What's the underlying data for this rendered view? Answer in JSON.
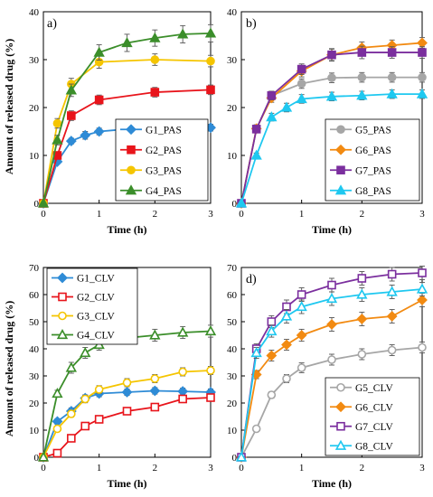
{
  "figure": {
    "ylabel": "Amount of released drug (%)"
  },
  "chart_data": [
    {
      "type": "line",
      "panel": "a)",
      "xlabel": "Time (h)",
      "ylabel": "Amount of released drug (%)",
      "xlim": [
        0,
        3
      ],
      "ylim": [
        0,
        40
      ],
      "xticks": [
        0,
        1,
        2,
        3
      ],
      "yticks": [
        0,
        10,
        20,
        30,
        40
      ],
      "legend_position": "bottom-right",
      "x": [
        0,
        0.25,
        0.5,
        0.75,
        1,
        1.5,
        2,
        2.5,
        3
      ],
      "series": [
        {
          "name": "G1_PAS",
          "color": "#2E8BD6",
          "marker": "diamond",
          "fill": "filled",
          "values": [
            0,
            8.7,
            13.0,
            14.2,
            15.0,
            15.5,
            15.4,
            15.6,
            15.8
          ],
          "err": [
            0,
            0.5,
            0.6,
            0.8,
            0.7,
            0.8,
            0.8,
            0.8,
            0.7
          ]
        },
        {
          "name": "G2_PAS",
          "color": "#E8141B",
          "marker": "square",
          "fill": "filled",
          "values": [
            0,
            10.0,
            18.3,
            null,
            21.6,
            null,
            23.2,
            null,
            23.7
          ],
          "err": [
            0,
            0.6,
            1.0,
            0,
            1.0,
            0,
            1.0,
            0,
            1.0
          ]
        },
        {
          "name": "G3_PAS",
          "color": "#F5C500",
          "marker": "circle",
          "fill": "filled",
          "values": [
            0,
            16.7,
            24.9,
            null,
            29.5,
            null,
            30.0,
            null,
            29.7
          ],
          "err": [
            0,
            1.0,
            1.2,
            0,
            1.3,
            0,
            1.2,
            0,
            1.2
          ]
        },
        {
          "name": "G4_PAS",
          "color": "#3B8E2A",
          "marker": "triangle",
          "fill": "filled",
          "values": [
            0,
            13.2,
            23.6,
            null,
            31.5,
            33.5,
            34.5,
            35.3,
            35.5
          ],
          "err": [
            0,
            1.0,
            1.3,
            0,
            1.6,
            1.8,
            1.7,
            1.8,
            1.8
          ]
        }
      ]
    },
    {
      "type": "line",
      "panel": "b)",
      "xlabel": "Time (h)",
      "ylabel": "",
      "xlim": [
        0,
        3
      ],
      "ylim": [
        0,
        40
      ],
      "xticks": [
        0,
        1,
        2,
        3
      ],
      "yticks": [
        0,
        10,
        20,
        30,
        40
      ],
      "legend_position": "bottom-right",
      "x": [
        0,
        0.25,
        0.5,
        0.75,
        1,
        1.5,
        2,
        2.5,
        3
      ],
      "series": [
        {
          "name": "G5_PAS",
          "color": "#A6A6A6",
          "marker": "circle",
          "fill": "filled",
          "values": [
            0,
            15.5,
            22.5,
            null,
            25.0,
            26.2,
            26.3,
            26.3,
            26.3
          ],
          "err": [
            0,
            0.8,
            0.9,
            0,
            1.0,
            1.0,
            1.0,
            1.0,
            1.0
          ]
        },
        {
          "name": "G6_PAS",
          "color": "#F28A11",
          "marker": "diamond",
          "fill": "filled",
          "values": [
            0,
            15.6,
            22.0,
            null,
            27.6,
            31.0,
            32.5,
            33.0,
            33.5
          ],
          "err": [
            0,
            0.8,
            0.9,
            0,
            1.2,
            1.2,
            1.2,
            1.1,
            1.1
          ]
        },
        {
          "name": "G7_PAS",
          "color": "#7B2F9E",
          "marker": "square",
          "fill": "filled",
          "values": [
            0,
            15.5,
            22.5,
            null,
            28.0,
            31.0,
            31.5,
            31.5,
            31.5
          ],
          "err": [
            0,
            0.7,
            0.9,
            0,
            1.1,
            1.3,
            1.3,
            1.2,
            1.2
          ]
        },
        {
          "name": "G8_PAS",
          "color": "#1FC8F0",
          "marker": "triangle",
          "fill": "filled",
          "values": [
            0,
            10.0,
            18.0,
            20.0,
            21.8,
            22.3,
            22.5,
            22.8,
            22.8
          ],
          "err": [
            0,
            0.5,
            0.8,
            0.9,
            0.9,
            0.9,
            0.9,
            0.9,
            0.9
          ]
        }
      ]
    },
    {
      "type": "line",
      "panel": "c)",
      "xlabel": "Time (h)",
      "ylabel": "Amount of released drug (%)",
      "xlim": [
        0,
        3
      ],
      "ylim": [
        0,
        70
      ],
      "xticks": [
        0,
        1,
        2,
        3
      ],
      "yticks": [
        0,
        10,
        20,
        30,
        40,
        50,
        60,
        70
      ],
      "legend_position": "top-left",
      "x": [
        0,
        0.25,
        0.5,
        0.75,
        1,
        1.5,
        2,
        2.5,
        3
      ],
      "series": [
        {
          "name": "G1_CLV",
          "color": "#2E8BD6",
          "marker": "diamond",
          "fill": "filled",
          "values": [
            0,
            13.2,
            17.0,
            21.8,
            23.5,
            24.0,
            24.5,
            24.3,
            24.0
          ],
          "err": [
            0,
            1.0,
            1.2,
            1.2,
            1.2,
            1.2,
            1.2,
            1.2,
            1.2
          ]
        },
        {
          "name": "G2_CLV",
          "color": "#E8141B",
          "marker": "square",
          "fill": "open",
          "values": [
            0,
            1.5,
            7.0,
            11.5,
            14.0,
            17.0,
            18.5,
            21.5,
            22.0
          ],
          "err": [
            0,
            0.5,
            0.8,
            1.0,
            1.0,
            1.0,
            1.0,
            1.2,
            1.2
          ]
        },
        {
          "name": "G3_CLV",
          "color": "#F5C500",
          "marker": "circle",
          "fill": "open",
          "values": [
            0,
            10.5,
            16.0,
            21.5,
            25.0,
            27.5,
            29.0,
            31.5,
            32.0
          ],
          "err": [
            0,
            1.0,
            1.2,
            1.4,
            1.4,
            1.5,
            1.5,
            1.5,
            1.5
          ]
        },
        {
          "name": "G4_CLV",
          "color": "#3B8E2A",
          "marker": "triangle",
          "fill": "open",
          "values": [
            0,
            23.5,
            33.0,
            38.5,
            41.5,
            44.0,
            45.0,
            46.0,
            46.5
          ],
          "err": [
            0,
            1.2,
            2.0,
            2.0,
            2.0,
            2.2,
            2.2,
            2.2,
            2.2
          ]
        }
      ]
    },
    {
      "type": "line",
      "panel": "d)",
      "xlabel": "Time (h)",
      "ylabel": "",
      "xlim": [
        0,
        3
      ],
      "ylim": [
        0,
        70
      ],
      "xticks": [
        0,
        1,
        2,
        3
      ],
      "yticks": [
        0,
        10,
        20,
        30,
        40,
        50,
        60,
        70
      ],
      "legend_position": "bottom-right",
      "x": [
        0,
        0.25,
        0.5,
        0.75,
        1,
        1.5,
        2,
        2.5,
        3
      ],
      "series": [
        {
          "name": "G5_CLV",
          "color": "#A6A6A6",
          "marker": "circle",
          "fill": "open",
          "values": [
            0,
            10.5,
            23.0,
            29.0,
            33.0,
            36.0,
            38.0,
            39.5,
            40.5
          ],
          "err": [
            0,
            0.8,
            1.2,
            1.5,
            1.8,
            2.0,
            2.0,
            2.0,
            2.0
          ]
        },
        {
          "name": "G6_CLV",
          "color": "#F28A11",
          "marker": "diamond",
          "fill": "filled",
          "values": [
            0,
            30.5,
            37.5,
            41.5,
            45.0,
            49.0,
            51.0,
            52.0,
            58.0
          ],
          "err": [
            0,
            1.5,
            2.0,
            2.0,
            2.2,
            2.5,
            2.5,
            2.5,
            2.5
          ]
        },
        {
          "name": "G7_CLV",
          "color": "#7B2F9E",
          "marker": "square",
          "fill": "open",
          "values": [
            0,
            40.0,
            50.0,
            55.5,
            60.0,
            63.5,
            66.0,
            67.5,
            68.0
          ],
          "err": [
            0,
            1.8,
            2.2,
            2.5,
            2.5,
            2.5,
            2.5,
            2.5,
            2.5
          ]
        },
        {
          "name": "G8_CLV",
          "color": "#1FC8F0",
          "marker": "triangle",
          "fill": "open",
          "values": [
            0,
            38.5,
            46.5,
            52.0,
            55.5,
            58.5,
            60.0,
            61.0,
            62.0
          ],
          "err": [
            0,
            2.0,
            2.2,
            2.5,
            2.5,
            2.5,
            2.5,
            2.5,
            2.5
          ]
        }
      ]
    }
  ]
}
